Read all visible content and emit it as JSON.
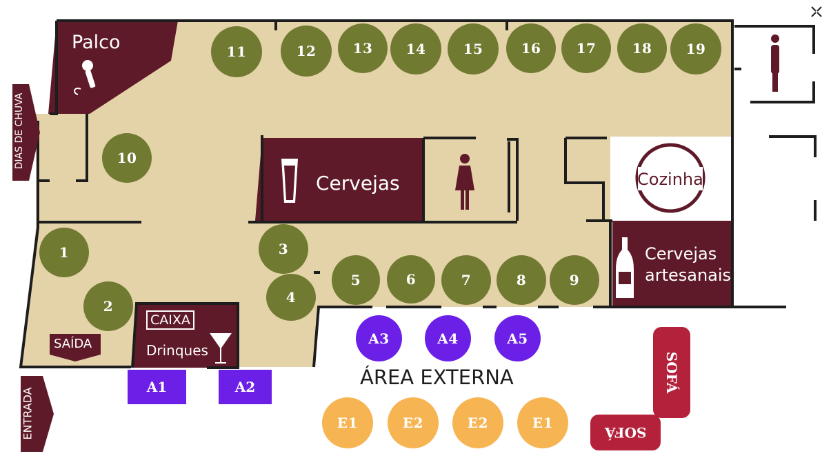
{
  "colors": {
    "floor": "#e4d2a9",
    "wall": "#1d1d1d",
    "room": "#5e1a28",
    "olive": "#717a31",
    "purple": "#6c1fe6",
    "orange": "#f7b452",
    "sofa": "#b3223a"
  },
  "rooms": {
    "stage": "Palco",
    "beers": "Cervejas",
    "kitchen": "Cozinha",
    "craft_beers_line1": "Cervejas",
    "craft_beers_line2": "artesanais",
    "cashier": "CAIXA",
    "drinks": "Drinques",
    "exit": "SAÍDA",
    "entrance": "ENTRADA",
    "rainy_days": "DIAS DE CHUVA",
    "outdoor_area": "ÁREA EXTERNA"
  },
  "tables": {
    "t1": "1",
    "t2": "2",
    "t3": "3",
    "t4": "4",
    "t5": "5",
    "t6": "6",
    "t7": "7",
    "t8": "8",
    "t9": "9",
    "t10": "10",
    "t11": "11",
    "t12": "12",
    "t13": "13",
    "t14": "14",
    "t15": "15",
    "t16": "16",
    "t17": "17",
    "t18": "18",
    "t19": "19"
  },
  "area_tables": {
    "a1": "A1",
    "a2": "A2",
    "a3": "A3",
    "a4": "A4",
    "a5": "A5"
  },
  "external_tables": {
    "e1": "E1",
    "e2": "E2",
    "e3": "E2",
    "e4": "E1"
  },
  "sofas": {
    "sofa1": "SOFÁ",
    "sofa2": "SOFÁ"
  },
  "icons": {
    "microphone": "microphone-icon",
    "beer": "beer-glass-icon",
    "woman": "woman-restroom-icon",
    "man": "man-restroom-icon",
    "bottle": "beer-bottle-icon",
    "cocktail": "cocktail-icon",
    "exit_arrow": "exit-arrow-icon",
    "entrance_arrow": "entrance-arrow-icon"
  }
}
